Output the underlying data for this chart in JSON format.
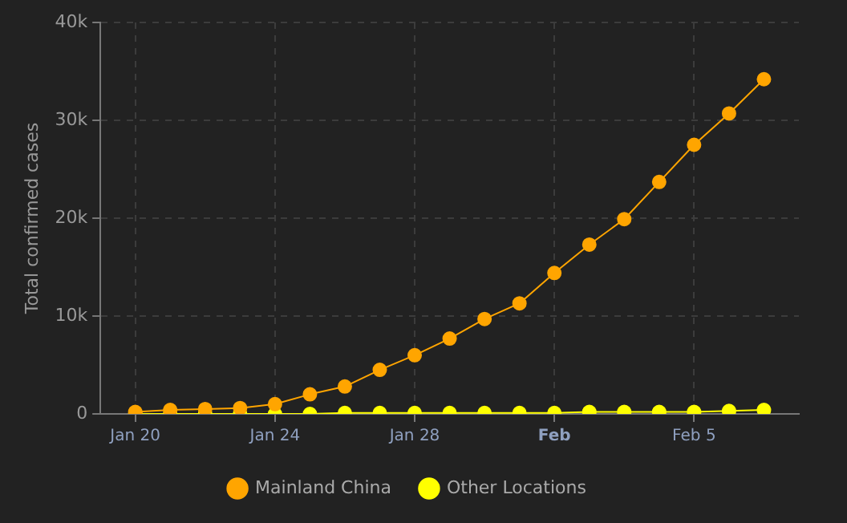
{
  "chart_data": {
    "type": "line",
    "ylabel": "Total confirmed cases",
    "x": [
      "--01-20",
      "--01-21",
      "--01-22",
      "--01-23",
      "--01-24",
      "--01-25",
      "--01-26",
      "--01-27",
      "--01-28",
      "--01-29",
      "--01-30",
      "--01-31",
      "--02-01",
      "--02-02",
      "--02-03",
      "--02-04",
      "--02-05",
      "--02-06",
      "--02-07"
    ],
    "series": [
      {
        "name": "Mainland China",
        "color": "#ffa500",
        "values": [
          200,
          400,
          500,
          600,
          1000,
          2000,
          2800,
          4500,
          6000,
          7700,
          9700,
          11300,
          14400,
          17300,
          19900,
          23700,
          27500,
          30700,
          34200
        ]
      },
      {
        "name": "Other Locations",
        "color": "#ffff00",
        "values": [
          0,
          0,
          0,
          0,
          0,
          0,
          100,
          100,
          100,
          100,
          100,
          100,
          100,
          200,
          200,
          200,
          200,
          300,
          400
        ]
      }
    ],
    "xlim": [
      "--01-19",
      "--02-08"
    ],
    "xticks": [
      {
        "value": "--01-20",
        "label": "Jan 20"
      },
      {
        "value": "--01-24",
        "label": "Jan 24"
      },
      {
        "value": "--01-28",
        "label": "Jan 28"
      },
      {
        "value": "--02-01",
        "label": "Feb"
      },
      {
        "value": "--02-05",
        "label": "Feb 5"
      }
    ],
    "ylim": [
      0,
      40000
    ],
    "yticks": [
      0,
      {
        "value": 10000,
        "label": "10k"
      },
      {
        "value": 20000,
        "label": "20k"
      },
      {
        "value": 30000,
        "label": "30k"
      },
      {
        "value": 40000,
        "label": "40k"
      }
    ],
    "grid": true,
    "legend": "bottom",
    "marker": "circle",
    "line_style": "solid"
  }
}
